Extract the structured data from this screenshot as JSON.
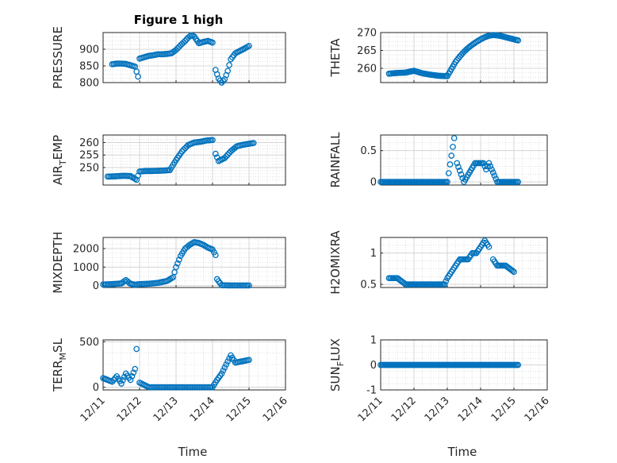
{
  "figure": {
    "marker_color": "#0072bd",
    "grid_color": "#d5d5d5",
    "axes_color": "#262626"
  },
  "chart_data": [
    {
      "type": "scatter",
      "title": "Figure 1 high",
      "ylabel": "PRESSURE",
      "ylim": [
        800,
        950
      ],
      "yticks": [
        800,
        850,
        900
      ],
      "xticks": [],
      "x": [
        "12/11 06:00",
        "12/11 09:00",
        "12/11 12:00",
        "12/11 15:00",
        "12/11 18:00",
        "12/11 21:00",
        "12/11 23:00",
        "12/12 00:00",
        "12/12 03:00",
        "12/12 06:00",
        "12/12 09:00",
        "12/12 12:00",
        "12/12 15:00",
        "12/12 18:00",
        "12/12 21:00",
        "12/13 00:00",
        "12/13 03:00",
        "12/13 06:00",
        "12/13 08:00",
        "12/13 10:00",
        "12/13 12:00",
        "12/13 15:00",
        "12/13 18:00",
        "12/13 21:00",
        "12/14 00:00",
        "12/14 02:00",
        "12/14 04:00",
        "12/14 06:00",
        "12/14 08:00",
        "12/14 10:00",
        "12/14 12:00",
        "12/14 15:00",
        "12/14 18:00",
        "12/14 21:00",
        "12/15 00:00"
      ],
      "y": [
        855,
        857,
        857,
        856,
        852,
        848,
        818,
        872,
        876,
        880,
        882,
        885,
        885,
        886,
        888,
        898,
        912,
        925,
        935,
        942,
        938,
        918,
        922,
        925,
        920,
        838,
        812,
        800,
        810,
        835,
        870,
        888,
        895,
        902,
        910
      ]
    },
    {
      "type": "scatter",
      "ylabel": "THETA",
      "ylim": [
        256,
        270
      ],
      "yticks": [
        260,
        265,
        270
      ],
      "xticks": [],
      "x": [
        "12/11 06:00",
        "12/11 12:00",
        "12/11 18:00",
        "12/12 00:00",
        "12/12 06:00",
        "12/12 12:00",
        "12/12 18:00",
        "12/13 00:00",
        "12/13 03:00",
        "12/13 06:00",
        "12/13 09:00",
        "12/13 12:00",
        "12/13 15:00",
        "12/13 18:00",
        "12/13 21:00",
        "12/14 00:00",
        "12/14 03:00",
        "12/14 06:00",
        "12/14 09:00",
        "12/14 12:00",
        "12/14 15:00",
        "12/14 18:00",
        "12/14 21:00",
        "12/15 00:00",
        "12/15 03:00"
      ],
      "y": [
        258.5,
        258.7,
        258.8,
        259.3,
        258.6,
        258.2,
        257.9,
        257.8,
        259.8,
        261.8,
        263.3,
        264.6,
        265.7,
        266.6,
        267.4,
        268.1,
        268.7,
        269.1,
        269.3,
        269.2,
        269.0,
        268.7,
        268.4,
        268.1,
        267.8
      ]
    },
    {
      "type": "scatter",
      "ylabel": "AIR_TEMP",
      "ylim": [
        243,
        263
      ],
      "yticks": [
        250,
        255,
        260
      ],
      "xticks": [],
      "x": [
        "12/11 03:00",
        "12/11 08:00",
        "12/11 13:00",
        "12/11 18:00",
        "12/11 22:00",
        "12/12 00:00",
        "12/12 04:00",
        "12/12 08:00",
        "12/12 12:00",
        "12/12 16:00",
        "12/12 20:00",
        "12/13 00:00",
        "12/13 04:00",
        "12/13 08:00",
        "12/13 12:00",
        "12/13 16:00",
        "12/13 20:00",
        "12/14 00:00",
        "12/14 02:00",
        "12/14 04:00",
        "12/14 08:00",
        "12/14 12:00",
        "12/14 16:00",
        "12/14 20:00",
        "12/15 00:00",
        "12/15 03:00"
      ],
      "y": [
        246.4,
        246.5,
        246.7,
        246.6,
        245.1,
        248.4,
        248.6,
        248.6,
        248.7,
        248.8,
        249.0,
        253.0,
        256.5,
        259.0,
        260.0,
        260.3,
        260.8,
        261.0,
        255.5,
        252.6,
        253.8,
        256.5,
        258.5,
        259.1,
        259.5,
        259.8
      ]
    },
    {
      "type": "scatter",
      "ylabel": "RAINFALL",
      "ylim": [
        -0.05,
        0.75
      ],
      "yticks": [
        0,
        0.5
      ],
      "xticks": [],
      "x": [
        "12/11 00:00",
        "12/11 12:00",
        "12/12 00:00",
        "12/12 12:00",
        "12/13 00:00",
        "12/13 05:00",
        "12/13 07:00",
        "12/13 12:00",
        "12/13 20:00",
        "12/13 22:00",
        "12/14 02:00",
        "12/14 04:00",
        "12/14 06:00",
        "12/14 12:00",
        "12/15 00:00",
        "12/15 03:00"
      ],
      "y": [
        0,
        0,
        0,
        0,
        0,
        0.7,
        0.3,
        0,
        0.3,
        0.3,
        0.3,
        0.2,
        0.3,
        0,
        0,
        0
      ]
    },
    {
      "type": "scatter",
      "ylabel": "MIXDEPTH",
      "ylim": [
        -100,
        2600
      ],
      "yticks": [
        0,
        1000,
        2000
      ],
      "xticks": [],
      "x": [
        "12/11 00:00",
        "12/11 06:00",
        "12/11 12:00",
        "12/11 15:00",
        "12/11 18:00",
        "12/11 21:00",
        "12/12 00:00",
        "12/12 06:00",
        "12/12 12:00",
        "12/12 18:00",
        "12/12 22:00",
        "12/13 00:00",
        "12/13 03:00",
        "12/13 06:00",
        "12/13 09:00",
        "12/13 12:00",
        "12/13 15:00",
        "12/13 18:00",
        "12/13 21:00",
        "12/14 00:00",
        "12/14 02:00",
        "12/14 03:00",
        "12/14 06:00",
        "12/14 12:00",
        "12/14 18:00",
        "12/15 00:00"
      ],
      "y": [
        60,
        80,
        120,
        300,
        100,
        50,
        80,
        100,
        150,
        250,
        450,
        1000,
        1600,
        2000,
        2200,
        2350,
        2300,
        2200,
        2050,
        1950,
        1650,
        350,
        20,
        10,
        10,
        10
      ]
    },
    {
      "type": "scatter",
      "ylabel": "H2OMIXRA",
      "ylim": [
        0.45,
        1.25
      ],
      "yticks": [
        0.5,
        1
      ],
      "xticks": [],
      "x": [
        "12/11 06:00",
        "12/11 12:00",
        "12/11 18:00",
        "12/12 00:00",
        "12/12 06:00",
        "12/12 12:00",
        "12/12 18:00",
        "12/12 22:00",
        "12/13 00:00",
        "12/13 03:00",
        "12/13 06:00",
        "12/13 09:00",
        "12/13 12:00",
        "12/13 15:00",
        "12/13 18:00",
        "12/13 21:00",
        "12/14 00:00",
        "12/14 03:00",
        "12/14 06:00",
        "12/14 09:00",
        "12/14 12:00",
        "12/14 18:00",
        "12/15 00:00"
      ],
      "y": [
        0.6,
        0.6,
        0.5,
        0.5,
        0.5,
        0.5,
        0.5,
        0.5,
        0.6,
        0.7,
        0.8,
        0.9,
        0.9,
        0.9,
        1.0,
        1.0,
        1.1,
        1.2,
        1.1,
        0.9,
        0.8,
        0.8,
        0.7
      ]
    },
    {
      "type": "scatter",
      "ylabel": "TERR_MSL",
      "ylim": [
        -30,
        520
      ],
      "yticks": [
        0,
        500
      ],
      "xticks": [
        "12/11",
        "12/12",
        "12/13",
        "12/14",
        "12/15",
        "12/16"
      ],
      "xlabel": "Time",
      "x": [
        "12/11 00:00",
        "12/11 03:00",
        "12/11 06:00",
        "12/11 09:00",
        "12/11 12:00",
        "12/11 15:00",
        "12/11 18:00",
        "12/11 21:00",
        "12/11 22:00",
        "12/12 00:00",
        "12/12 06:00",
        "12/12 12:00",
        "12/12 18:00",
        "12/13 00:00",
        "12/13 06:00",
        "12/13 12:00",
        "12/13 18:00",
        "12/14 00:00",
        "12/14 03:00",
        "12/14 06:00",
        "12/14 09:00",
        "12/14 12:00",
        "12/14 15:00",
        "12/14 18:00",
        "12/15 00:00"
      ],
      "y": [
        100,
        80,
        60,
        120,
        40,
        150,
        80,
        200,
        420,
        50,
        0,
        0,
        0,
        0,
        0,
        0,
        0,
        0,
        80,
        150,
        250,
        350,
        270,
        280,
        300
      ]
    },
    {
      "type": "scatter",
      "ylabel": "SUN_FLUX",
      "ylim": [
        -1,
        1
      ],
      "yticks": [
        -1,
        0,
        1
      ],
      "xticks": [
        "12/11",
        "12/12",
        "12/13",
        "12/14",
        "12/15",
        "12/16"
      ],
      "xlabel": "Time",
      "x": [
        "12/11 00:00",
        "12/11 12:00",
        "12/12 00:00",
        "12/12 12:00",
        "12/13 00:00",
        "12/13 12:00",
        "12/14 00:00",
        "12/14 12:00",
        "12/15 00:00",
        "12/15 03:00"
      ],
      "y": [
        0,
        0,
        0,
        0,
        0,
        0,
        0,
        0,
        0,
        0
      ]
    }
  ]
}
